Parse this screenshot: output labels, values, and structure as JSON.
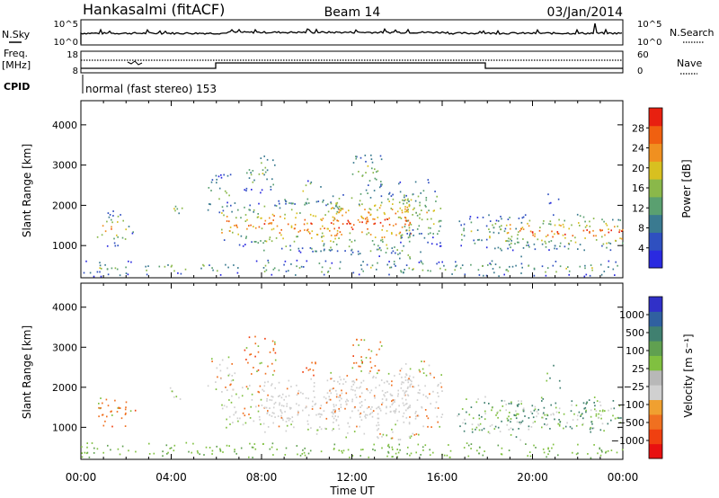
{
  "header": {
    "station": "Hankasalmi (fitACF)",
    "beam": "Beam 14",
    "date": "03/Jan/2014"
  },
  "top_panels": {
    "nsky_label": "N.Sky",
    "nsky_ticks": [
      "10^5",
      "10^0"
    ],
    "nsearch_label": "N.Search",
    "nsearch_ticks": [
      "10^5",
      "10^0"
    ],
    "freq_label_1": "Freq.",
    "freq_label_2": "[MHz]",
    "freq_ticks": [
      "18",
      "8"
    ],
    "nave_label": "Nave",
    "nave_ticks": [
      "60",
      "0"
    ],
    "cpid_label": "CPID",
    "cpid_text": "normal (fast stereo) 153"
  },
  "colors": {
    "power_scale": [
      "#2a2ae0",
      "#2f50c0",
      "#3a7a90",
      "#5aa070",
      "#8ab84a",
      "#d8c020",
      "#f09020",
      "#f06010",
      "#e82010"
    ],
    "velocity_scale": [
      "#3030c8",
      "#3060a0",
      "#408070",
      "#60a050",
      "#80c040",
      "#b8b8b8",
      "#d0d0d0",
      "#f0a030",
      "#f07020",
      "#f04010",
      "#e81010"
    ]
  },
  "chart_data": [
    {
      "type": "heatmap",
      "name": "power",
      "ylabel": "Slant Range [km]",
      "y_ticks": [
        "1000",
        "2000",
        "3000",
        "4000"
      ],
      "ylim": [
        200,
        4600
      ],
      "colorbar_label": "Power [dB]",
      "colorbar_ticks": [
        "4",
        "8",
        "12",
        "16",
        "20",
        "24",
        "28"
      ]
    },
    {
      "type": "heatmap",
      "name": "velocity",
      "ylabel": "Slant Range [km]",
      "y_ticks": [
        "1000",
        "2000",
        "3000",
        "4000"
      ],
      "ylim": [
        200,
        4600
      ],
      "colorbar_label": "Velocity [m s⁻¹]",
      "colorbar_ticks": [
        "1000",
        "500",
        "100",
        "25",
        "−25",
        "−100",
        "−500",
        "−1000"
      ],
      "xlabel": "Time UT",
      "x_ticks": [
        "00:00",
        "04:00",
        "08:00",
        "12:00",
        "16:00",
        "20:00",
        "00:00"
      ]
    }
  ]
}
